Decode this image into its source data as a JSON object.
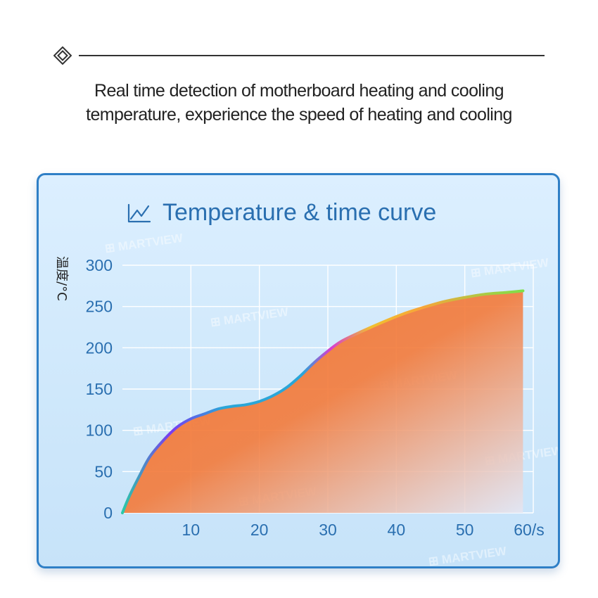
{
  "headline": {
    "line1": "Real time detection of motherboard heating and cooling",
    "line2": "temperature, experience the speed of heating and cooling"
  },
  "icons": {
    "header": "diamond-icon",
    "chart_title": "line-chart-icon"
  },
  "colors": {
    "frame": "#2f7fc6",
    "axis_text": "#2a6fb0",
    "fill_top": "#f37a3a",
    "fill_bottom": "#e6e6f2",
    "curve_start": "#2ac9a8",
    "curve_mid": "#7a3cf0",
    "curve_end": "#7ce04a"
  },
  "watermark": "MARTVIEW",
  "chart_data": {
    "type": "area",
    "title": "Temperature & time curve",
    "ylabel": "温度/°C",
    "xlabel": "",
    "xlim": [
      0,
      60
    ],
    "ylim": [
      0,
      300
    ],
    "x_ticks": [
      "10",
      "20",
      "30",
      "40",
      "50",
      "60/s"
    ],
    "x_tick_values": [
      10,
      20,
      30,
      40,
      50,
      60
    ],
    "y_ticks": [
      "0",
      "50",
      "100",
      "150",
      "200",
      "250",
      "300"
    ],
    "y_tick_values": [
      0,
      50,
      100,
      150,
      200,
      250,
      300
    ],
    "grid": true,
    "series": [
      {
        "points": [
          [
            0,
            0
          ],
          [
            1,
            20
          ],
          [
            2.5,
            45
          ],
          [
            4,
            68
          ],
          [
            6,
            88
          ],
          [
            8,
            104
          ],
          [
            10,
            114
          ],
          [
            12,
            120
          ],
          [
            14,
            126
          ],
          [
            16,
            129
          ],
          [
            18,
            131
          ],
          [
            20,
            135
          ],
          [
            22,
            142
          ],
          [
            24,
            152
          ],
          [
            26,
            166
          ],
          [
            28,
            182
          ],
          [
            30,
            196
          ],
          [
            32,
            208
          ],
          [
            35,
            220
          ],
          [
            38,
            231
          ],
          [
            41,
            241
          ],
          [
            44,
            249
          ],
          [
            47,
            256
          ],
          [
            50,
            261
          ],
          [
            53,
            265
          ],
          [
            56,
            267
          ],
          [
            58.5,
            269
          ]
        ]
      }
    ]
  }
}
